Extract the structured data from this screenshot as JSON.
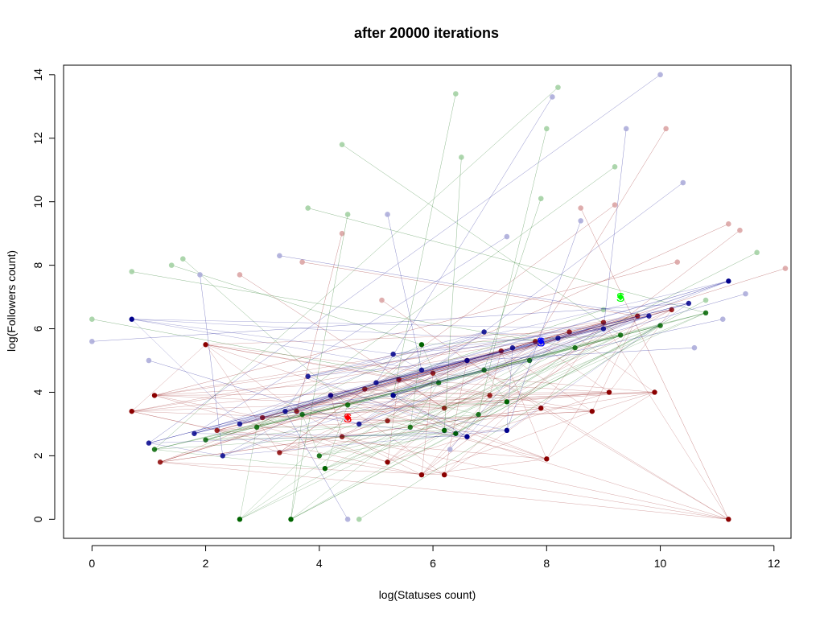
{
  "chart_data": {
    "type": "scatter",
    "title": "after 20000 iterations",
    "xlabel": "log(Statuses count)",
    "ylabel": "log(Followers count)",
    "xlim": [
      -0.5,
      12.3
    ],
    "ylim": [
      -0.6,
      14.3
    ],
    "x_ticks": [
      "0",
      "2",
      "4",
      "6",
      "8",
      "10",
      "12"
    ],
    "y_ticks": [
      "0",
      "2",
      "4",
      "6",
      "8",
      "10",
      "12",
      "14"
    ],
    "grid": false,
    "legend": "none",
    "colors": {
      "red": "#8b0000",
      "green": "#006400",
      "blue": "#00008b",
      "red_light": "#d9a0a0",
      "green_light": "#9fcf9f",
      "blue_light": "#a8a8d8",
      "red_marker": "#ff0000",
      "green_marker": "#00ff00",
      "blue_marker": "#0000ff"
    },
    "series": [
      {
        "color": "red",
        "cluster_points": [
          [
            1.2,
            1.8
          ],
          [
            2.2,
            2.8
          ],
          [
            3.0,
            3.2
          ],
          [
            3.6,
            3.4
          ],
          [
            4.2,
            3.9
          ],
          [
            4.8,
            4.1
          ],
          [
            5.4,
            4.4
          ],
          [
            6.0,
            4.6
          ],
          [
            6.6,
            5.0
          ],
          [
            7.2,
            5.3
          ],
          [
            7.8,
            5.6
          ],
          [
            8.4,
            5.9
          ],
          [
            9.0,
            6.2
          ],
          [
            9.6,
            6.4
          ],
          [
            10.2,
            6.6
          ],
          [
            3.3,
            2.1
          ],
          [
            4.4,
            2.6
          ],
          [
            5.2,
            3.1
          ],
          [
            6.2,
            3.5
          ],
          [
            7.0,
            3.9
          ]
        ],
        "outliers": [
          [
            11.2,
            0.0
          ],
          [
            9.9,
            4.0
          ],
          [
            9.1,
            4.0
          ],
          [
            8.0,
            1.9
          ],
          [
            6.2,
            1.4
          ],
          [
            5.8,
            1.4
          ],
          [
            5.2,
            1.8
          ],
          [
            8.8,
            3.4
          ],
          [
            7.9,
            3.5
          ],
          [
            2.0,
            5.5
          ],
          [
            1.1,
            3.9
          ],
          [
            0.7,
            3.4
          ]
        ],
        "light_points": [
          [
            12.2,
            7.9
          ],
          [
            11.2,
            9.3
          ],
          [
            10.1,
            12.3
          ],
          [
            9.2,
            9.9
          ],
          [
            8.6,
            9.8
          ],
          [
            11.4,
            9.1
          ],
          [
            10.3,
            8.1
          ],
          [
            4.4,
            9.0
          ],
          [
            5.1,
            6.9
          ],
          [
            3.7,
            8.1
          ],
          [
            2.6,
            7.7
          ]
        ]
      },
      {
        "color": "green",
        "cluster_points": [
          [
            1.1,
            2.2
          ],
          [
            2.0,
            2.5
          ],
          [
            2.9,
            2.9
          ],
          [
            3.7,
            3.3
          ],
          [
            4.5,
            3.6
          ],
          [
            5.3,
            3.9
          ],
          [
            6.1,
            4.3
          ],
          [
            6.9,
            4.7
          ],
          [
            7.7,
            5.0
          ],
          [
            8.5,
            5.4
          ],
          [
            9.3,
            5.8
          ],
          [
            10.0,
            6.1
          ],
          [
            10.8,
            6.5
          ],
          [
            4.0,
            2.0
          ],
          [
            5.6,
            2.9
          ],
          [
            6.8,
            3.3
          ]
        ],
        "outliers": [
          [
            4.1,
            1.6
          ],
          [
            3.5,
            0.0
          ],
          [
            2.6,
            0.0
          ],
          [
            6.4,
            2.7
          ],
          [
            6.2,
            2.8
          ],
          [
            7.3,
            3.7
          ],
          [
            5.8,
            5.5
          ]
        ],
        "light_points": [
          [
            8.2,
            13.6
          ],
          [
            6.4,
            13.4
          ],
          [
            4.4,
            11.8
          ],
          [
            8.0,
            12.3
          ],
          [
            6.5,
            11.4
          ],
          [
            9.2,
            11.1
          ],
          [
            7.9,
            10.1
          ],
          [
            3.8,
            9.8
          ],
          [
            4.5,
            9.6
          ],
          [
            1.4,
            8.0
          ],
          [
            1.6,
            8.2
          ],
          [
            0.7,
            7.8
          ],
          [
            11.7,
            8.4
          ],
          [
            10.8,
            6.9
          ],
          [
            9.0,
            6.6
          ],
          [
            0.0,
            6.3
          ],
          [
            4.7,
            0.0
          ]
        ]
      },
      {
        "color": "blue",
        "cluster_points": [
          [
            1.0,
            2.4
          ],
          [
            1.8,
            2.7
          ],
          [
            2.6,
            3.0
          ],
          [
            3.4,
            3.4
          ],
          [
            4.2,
            3.9
          ],
          [
            5.0,
            4.3
          ],
          [
            5.8,
            4.7
          ],
          [
            6.6,
            5.0
          ],
          [
            7.4,
            5.4
          ],
          [
            8.2,
            5.7
          ],
          [
            9.0,
            6.0
          ],
          [
            9.8,
            6.4
          ],
          [
            10.5,
            6.8
          ],
          [
            3.8,
            4.5
          ],
          [
            5.3,
            5.2
          ],
          [
            6.9,
            5.9
          ],
          [
            2.3,
            2.0
          ],
          [
            4.7,
            3.0
          ]
        ],
        "outliers": [
          [
            0.7,
            6.3
          ],
          [
            6.6,
            2.6
          ],
          [
            7.3,
            2.8
          ],
          [
            5.3,
            3.9
          ],
          [
            7.9,
            5.6
          ],
          [
            11.2,
            7.5
          ]
        ],
        "light_points": [
          [
            10.0,
            14.0
          ],
          [
            8.1,
            13.3
          ],
          [
            9.4,
            12.3
          ],
          [
            10.4,
            10.6
          ],
          [
            8.6,
            9.4
          ],
          [
            7.3,
            8.9
          ],
          [
            5.2,
            9.6
          ],
          [
            3.3,
            8.3
          ],
          [
            1.9,
            7.7
          ],
          [
            11.5,
            7.1
          ],
          [
            11.1,
            6.3
          ],
          [
            10.6,
            5.4
          ],
          [
            0.0,
            5.6
          ],
          [
            1.0,
            5.0
          ],
          [
            6.3,
            2.2
          ],
          [
            4.5,
            0.0
          ]
        ]
      }
    ],
    "cluster_markers": [
      {
        "label": "S",
        "color": "red_marker",
        "x": 4.5,
        "y": 3.2
      },
      {
        "label": "S",
        "color": "green_marker",
        "x": 9.3,
        "y": 7.0
      },
      {
        "label": "S",
        "color": "blue_marker",
        "x": 7.9,
        "y": 5.6
      }
    ]
  }
}
